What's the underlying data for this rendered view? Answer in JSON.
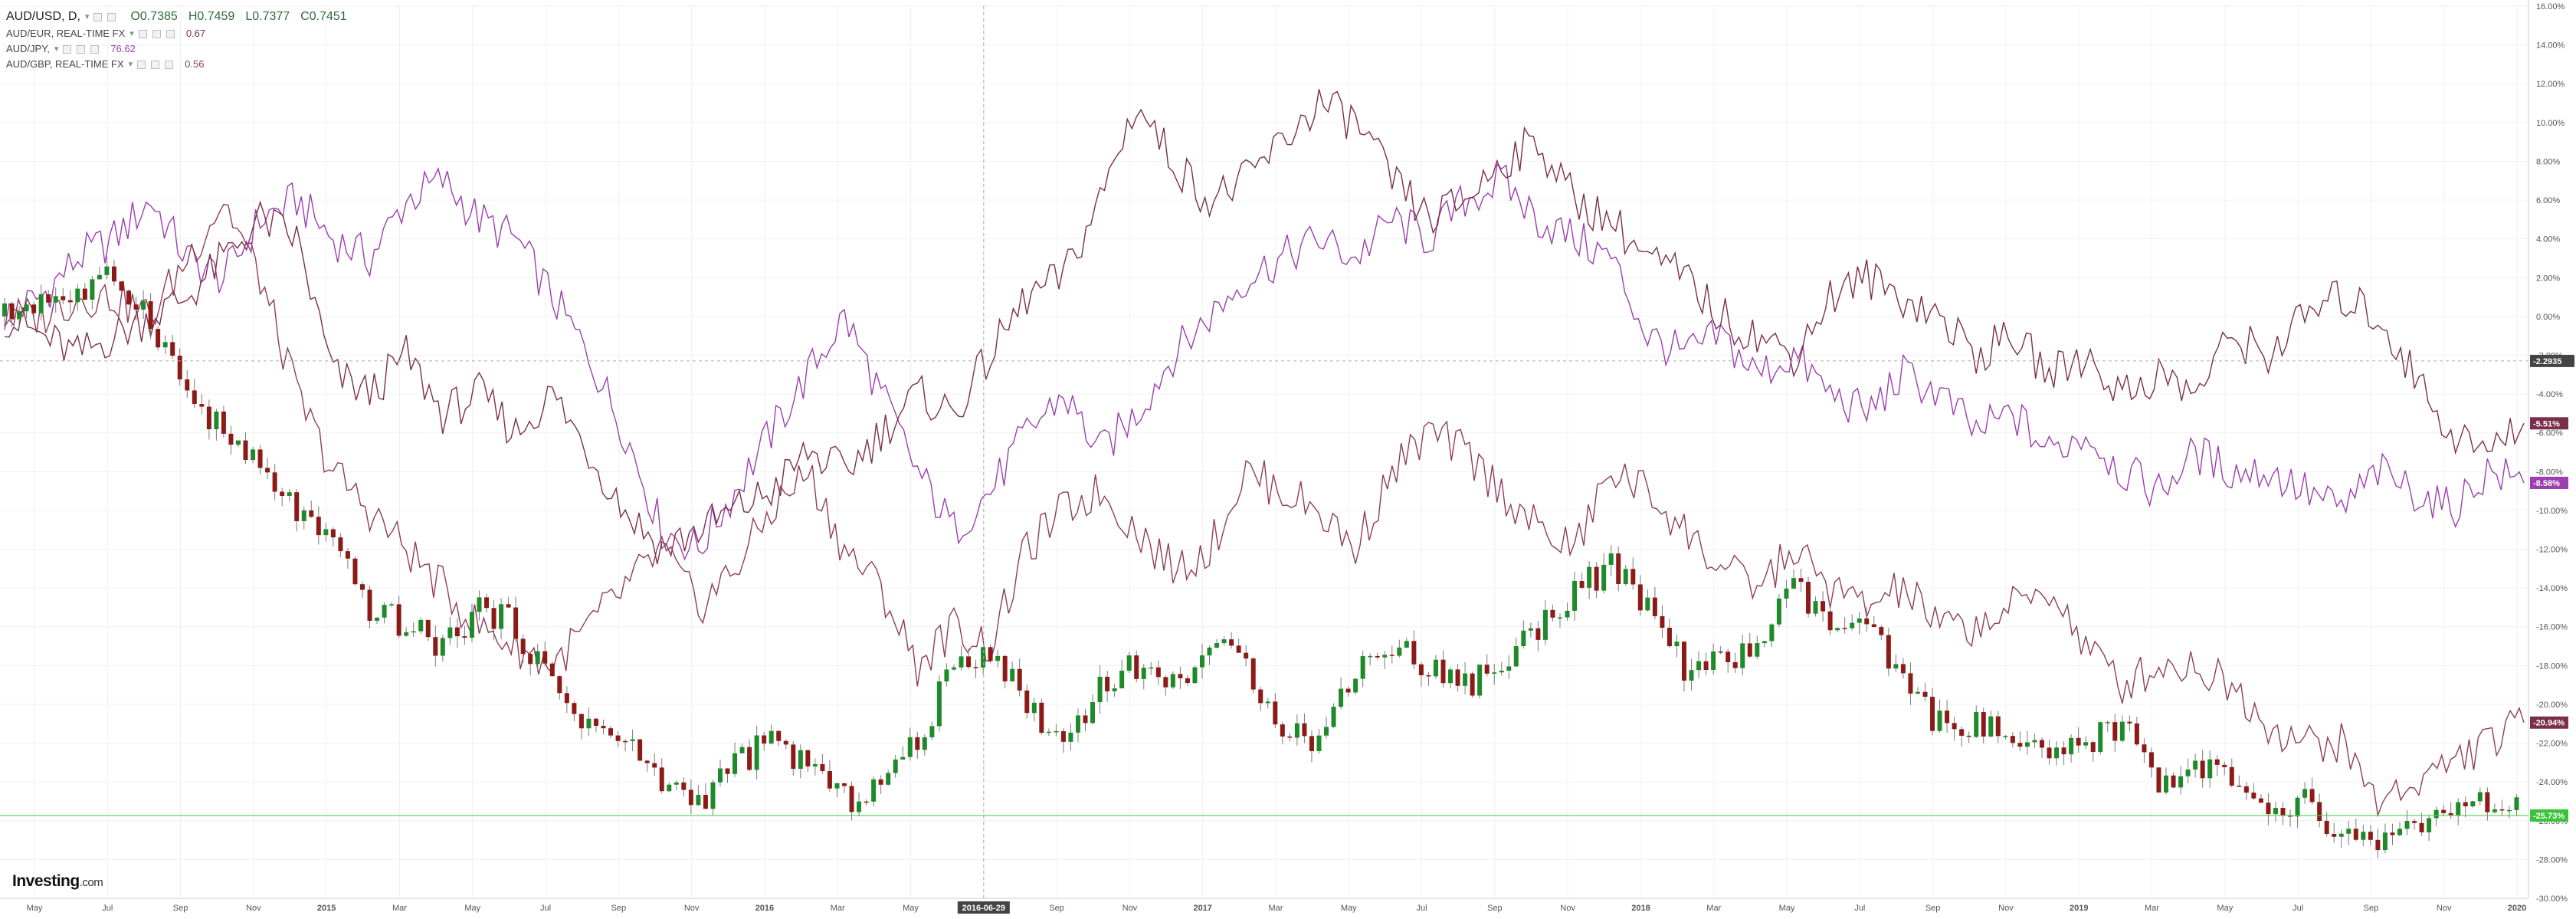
{
  "legend": {
    "main": {
      "symbol": "AUD/USD, D,",
      "caret": "▾",
      "open": "O0.7385",
      "high": "H0.7459",
      "low": "L0.7377",
      "close": "C0.7451"
    },
    "overlays": [
      {
        "symbol": "AUD/EUR, REAL-TIME FX",
        "caret": "▾",
        "value": "0.67"
      },
      {
        "symbol": "AUD/JPY,",
        "caret": "▾",
        "value": "76.62"
      },
      {
        "symbol": "AUD/GBP, REAL-TIME FX",
        "caret": "▾",
        "value": "0.56"
      }
    ]
  },
  "logo": {
    "brand": "Investing",
    "suffix": ".com"
  },
  "colors": {
    "jpy": "#9b3fae",
    "eur": "#7b2f4a",
    "gbp": "#8e3d5c",
    "candle_up": "#1e8a2a",
    "candle_down": "#8c1a16",
    "wick": "#7a7a7a",
    "green_line": "#4cd14c",
    "grid": "#f0f0f0"
  },
  "chart_data": {
    "type": "line",
    "title": "",
    "ylabel": "",
    "y_unit": "percent change",
    "ylim": [
      -30,
      16
    ],
    "y_ticks": [
      "16.00%",
      "14.00%",
      "12.00%",
      "10.00%",
      "8.00%",
      "6.00%",
      "4.00%",
      "2.00%",
      "0.00%",
      "-2.00%",
      "-4.00%",
      "-6.00%",
      "-8.00%",
      "-10.00%",
      "-12.00%",
      "-14.00%",
      "-16.00%",
      "-18.00%",
      "-20.00%",
      "-22.00%",
      "-24.00%",
      "-26.00%",
      "-28.00%",
      "-30.00%"
    ],
    "x_ticks": [
      "May",
      "Jul",
      "Sep",
      "Nov",
      "2015",
      "Mar",
      "May",
      "Jul",
      "Sep",
      "Nov",
      "2016",
      "Mar",
      "May",
      "2016-06-29",
      "Sep",
      "Nov",
      "2017",
      "Mar",
      "May",
      "Jul",
      "Sep",
      "Nov",
      "2018",
      "Mar",
      "May",
      "Jul",
      "Sep",
      "Nov",
      "2019",
      "Mar",
      "May",
      "Jul",
      "Sep",
      "Nov",
      "2020"
    ],
    "x_ticks_bold": [
      "2015",
      "2016",
      "2017",
      "2018",
      "2019",
      "2020"
    ],
    "x_range": [
      "2014-04",
      "2020-01"
    ],
    "crosshair": {
      "x_label": "2016-06-29",
      "y_label": "-2.2935"
    },
    "last_value_tags": [
      {
        "series": "AUD/EUR",
        "label": "-5.51%",
        "value": -5.51
      },
      {
        "series": "AUD/JPY",
        "label": "-8.58%",
        "value": -8.58
      },
      {
        "series": "AUD/GBP",
        "label": "-20.94%",
        "value": -20.94
      },
      {
        "series": "AUD/USD",
        "label": "-25.73%",
        "value": -25.73
      }
    ],
    "candles_series": "AUD/USD",
    "series": [
      {
        "name": "AUD/JPY",
        "key": "jpy",
        "x": [
          0,
          1,
          2,
          3,
          4,
          5,
          6,
          7,
          8,
          9,
          10,
          11,
          12,
          13,
          14,
          15,
          16,
          17,
          18,
          19,
          20,
          21,
          22,
          23,
          24,
          25,
          26,
          27,
          28,
          29,
          30,
          31,
          32,
          33,
          34,
          35,
          36,
          37,
          38,
          39,
          40,
          41,
          42,
          43,
          44,
          45,
          46,
          47,
          48,
          49,
          50,
          51,
          52,
          53,
          54,
          55,
          56,
          57,
          58,
          59,
          60,
          61,
          62,
          63,
          64,
          65,
          66,
          67,
          68,
          69
        ],
        "values": [
          0,
          1,
          3,
          4,
          6,
          3,
          2,
          5,
          6,
          4,
          3,
          6,
          7,
          5,
          4,
          1,
          -2,
          -6,
          -11,
          -12,
          -9,
          -6,
          -3,
          0,
          -4,
          -8,
          -11,
          -9,
          -6,
          -4,
          -7,
          -5,
          -2,
          0,
          2,
          3,
          4,
          3,
          5,
          4,
          6,
          7,
          5,
          4,
          3,
          -1,
          -2,
          -1,
          -3,
          -2,
          -4,
          -5,
          -3,
          -4,
          -6,
          -5,
          -7,
          -6,
          -8,
          -9,
          -7,
          -8,
          -8,
          -9,
          -10,
          -8,
          -9,
          -10,
          -8,
          -8.58
        ]
      },
      {
        "name": "AUD/EUR",
        "key": "eur",
        "x": [
          0,
          1,
          2,
          3,
          4,
          5,
          6,
          7,
          8,
          9,
          10,
          11,
          12,
          13,
          14,
          15,
          16,
          17,
          18,
          19,
          20,
          21,
          22,
          23,
          24,
          25,
          26,
          27,
          28,
          29,
          30,
          31,
          32,
          33,
          34,
          35,
          36,
          37,
          38,
          39,
          40,
          41,
          42,
          43,
          44,
          45,
          46,
          47,
          48,
          49,
          50,
          51,
          52,
          53,
          54,
          55,
          56,
          57,
          58,
          59,
          60,
          61,
          62,
          63,
          64,
          65,
          66,
          67,
          68,
          69
        ],
        "values": [
          0,
          -1,
          -2,
          -1,
          0,
          1,
          3,
          5,
          4,
          -3,
          -4,
          -2,
          -5,
          -4,
          -6,
          -4,
          -7,
          -10,
          -12,
          -11,
          -10,
          -9,
          -7,
          -8,
          -6,
          -4,
          -5,
          -2,
          1,
          2,
          6,
          11,
          8,
          6,
          7,
          9,
          11,
          10,
          7,
          5,
          6,
          8,
          9,
          6,
          5,
          3,
          2,
          0,
          -1,
          -2,
          1,
          2,
          1,
          0,
          -2,
          -1,
          -3,
          -2,
          -4,
          -3,
          -4,
          -1,
          -2,
          0,
          1,
          0,
          -3,
          -6,
          -7,
          -5.51
        ]
      },
      {
        "name": "AUD/GBP",
        "key": "gbp",
        "x": [
          0,
          1,
          2,
          3,
          4,
          5,
          6,
          7,
          8,
          9,
          10,
          11,
          12,
          13,
          14,
          15,
          16,
          17,
          18,
          19,
          20,
          21,
          22,
          23,
          24,
          25,
          26,
          27,
          28,
          29,
          30,
          31,
          32,
          33,
          34,
          35,
          36,
          37,
          38,
          39,
          40,
          41,
          42,
          43,
          44,
          45,
          46,
          47,
          48,
          49,
          50,
          51,
          52,
          53,
          54,
          55,
          56,
          57,
          58,
          59,
          60,
          61,
          62,
          63,
          64,
          65,
          66,
          67,
          68,
          69
        ],
        "values": [
          0,
          0,
          1,
          1,
          0,
          3,
          6,
          2,
          -4,
          -8,
          -10,
          -12,
          -14,
          -16,
          -17,
          -18,
          -16,
          -14,
          -12,
          -15,
          -13,
          -10,
          -8,
          -12,
          -14,
          -18,
          -16,
          -17,
          -12,
          -10,
          -9,
          -11,
          -13,
          -12,
          -8,
          -9,
          -10,
          -12,
          -8,
          -6,
          -7,
          -9,
          -11,
          -12,
          -8,
          -9,
          -11,
          -13,
          -14,
          -12,
          -14,
          -15,
          -14,
          -16,
          -16,
          -15,
          -14,
          -17,
          -19,
          -18,
          -18,
          -19,
          -21,
          -22,
          -22,
          -25,
          -24,
          -23,
          -22,
          -20.94
        ]
      },
      {
        "name": "AUD/USD",
        "key": "usd",
        "x": [
          0,
          1,
          2,
          3,
          4,
          5,
          6,
          7,
          8,
          9,
          10,
          11,
          12,
          13,
          14,
          15,
          16,
          17,
          18,
          19,
          20,
          21,
          22,
          23,
          24,
          25,
          26,
          27,
          28,
          29,
          30,
          31,
          32,
          33,
          34,
          35,
          36,
          37,
          38,
          39,
          40,
          41,
          42,
          43,
          44,
          45,
          46,
          47,
          48,
          49,
          50,
          51,
          52,
          53,
          54,
          55,
          56,
          57,
          58,
          59,
          60,
          61,
          62,
          63,
          64,
          65,
          66,
          67,
          68,
          69
        ],
        "values": [
          0,
          1,
          1,
          2,
          0,
          -4,
          -6,
          -8,
          -10,
          -12,
          -15,
          -16,
          -17,
          -15,
          -16,
          -19,
          -21,
          -22,
          -24,
          -25,
          -23,
          -22,
          -23,
          -25,
          -24,
          -22,
          -18,
          -17,
          -20,
          -22,
          -19,
          -18,
          -19,
          -17,
          -18,
          -21,
          -22,
          -18,
          -17,
          -18,
          -19,
          -18,
          -16,
          -14,
          -13,
          -15,
          -18,
          -18,
          -17,
          -14,
          -16,
          -16,
          -19,
          -21,
          -21,
          -22,
          -23,
          -22,
          -21,
          -24,
          -23,
          -24,
          -26,
          -25,
          -27,
          -27,
          -26,
          -26,
          -25,
          -25.73
        ]
      }
    ],
    "grid": true,
    "legend": "top-left"
  }
}
